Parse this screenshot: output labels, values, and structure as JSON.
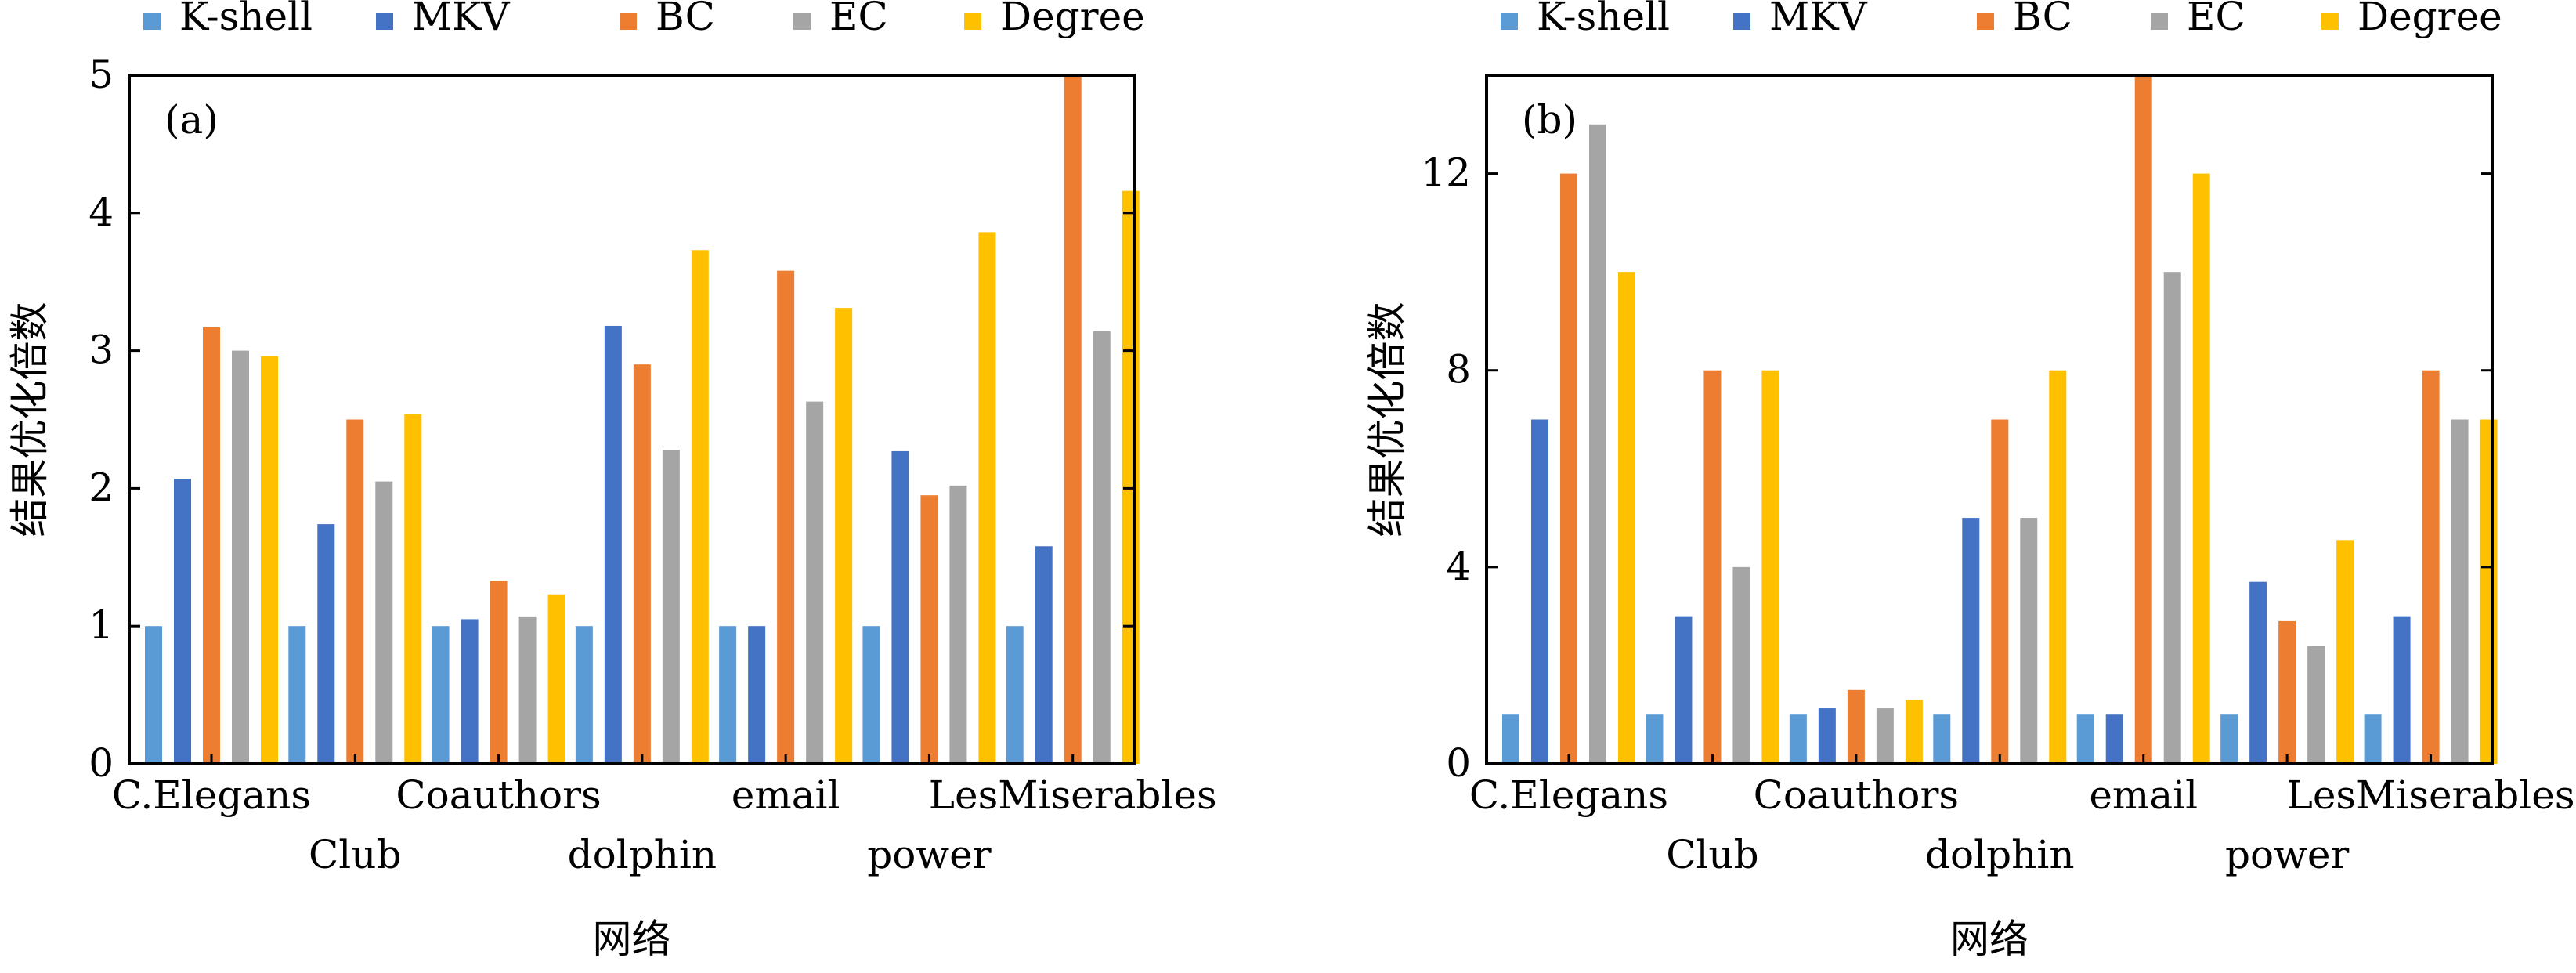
{
  "legend": {
    "entries": [
      {
        "name": "K-shell",
        "color": "#5B9BD5"
      },
      {
        "name": "MKV",
        "color": "#4472C4"
      },
      {
        "name": "BC",
        "color": "#ED7D31"
      },
      {
        "name": "EC",
        "color": "#A5A5A5"
      },
      {
        "name": "Degree",
        "color": "#FFC000"
      }
    ]
  },
  "chart_data": [
    {
      "type": "bar",
      "panel_label": "(a)",
      "xlabel": "网络",
      "ylabel": "结果优化倍数",
      "categories": [
        "C.Elegans",
        "Club",
        "Coauthors",
        "dolphin",
        "email",
        "power",
        "LesMiserables"
      ],
      "category_label_rows": [
        0,
        1,
        0,
        1,
        0,
        1,
        0
      ],
      "ylim": [
        0,
        5
      ],
      "yticks": [
        0,
        1,
        2,
        3,
        4,
        5
      ],
      "grid": false,
      "legend_position": "top",
      "series": [
        {
          "name": "K-shell",
          "color": "#5B9BD5",
          "values": [
            1.0,
            1.0,
            1.0,
            1.0,
            1.0,
            1.0,
            1.0
          ]
        },
        {
          "name": "MKV",
          "color": "#4472C4",
          "values": [
            2.07,
            1.74,
            1.05,
            3.18,
            1.0,
            2.27,
            1.58
          ]
        },
        {
          "name": "BC",
          "color": "#ED7D31",
          "values": [
            3.17,
            2.5,
            1.33,
            2.9,
            3.58,
            1.95,
            5.0
          ]
        },
        {
          "name": "EC",
          "color": "#A5A5A5",
          "values": [
            3.0,
            2.05,
            1.07,
            2.28,
            2.63,
            2.02,
            3.14
          ]
        },
        {
          "name": "Degree",
          "color": "#FFC000",
          "values": [
            2.96,
            2.54,
            1.23,
            3.73,
            3.31,
            3.86,
            4.16
          ]
        }
      ]
    },
    {
      "type": "bar",
      "panel_label": "(b)",
      "xlabel": "网络",
      "ylabel": "结果优化倍数",
      "categories": [
        "C.Elegans",
        "Club",
        "Coauthors",
        "dolphin",
        "email",
        "power",
        "LesMiserables"
      ],
      "category_label_rows": [
        0,
        1,
        0,
        1,
        0,
        1,
        0
      ],
      "ylim": [
        0,
        14
      ],
      "yticks": [
        0,
        4,
        8,
        12
      ],
      "grid": false,
      "legend_position": "top",
      "series": [
        {
          "name": "K-shell",
          "color": "#5B9BD5",
          "values": [
            1.0,
            1.0,
            1.0,
            1.0,
            1.0,
            1.0,
            1.0
          ]
        },
        {
          "name": "MKV",
          "color": "#4472C4",
          "values": [
            7.0,
            3.0,
            1.13,
            5.0,
            1.0,
            3.7,
            3.0
          ]
        },
        {
          "name": "BC",
          "color": "#ED7D31",
          "values": [
            12.0,
            8.0,
            1.5,
            7.0,
            14.0,
            2.9,
            8.0
          ]
        },
        {
          "name": "EC",
          "color": "#A5A5A5",
          "values": [
            13.0,
            4.0,
            1.13,
            5.0,
            10.0,
            2.4,
            7.0
          ]
        },
        {
          "name": "Degree",
          "color": "#FFC000",
          "values": [
            10.0,
            8.0,
            1.3,
            8.0,
            12.0,
            4.55,
            7.0
          ]
        }
      ]
    }
  ]
}
